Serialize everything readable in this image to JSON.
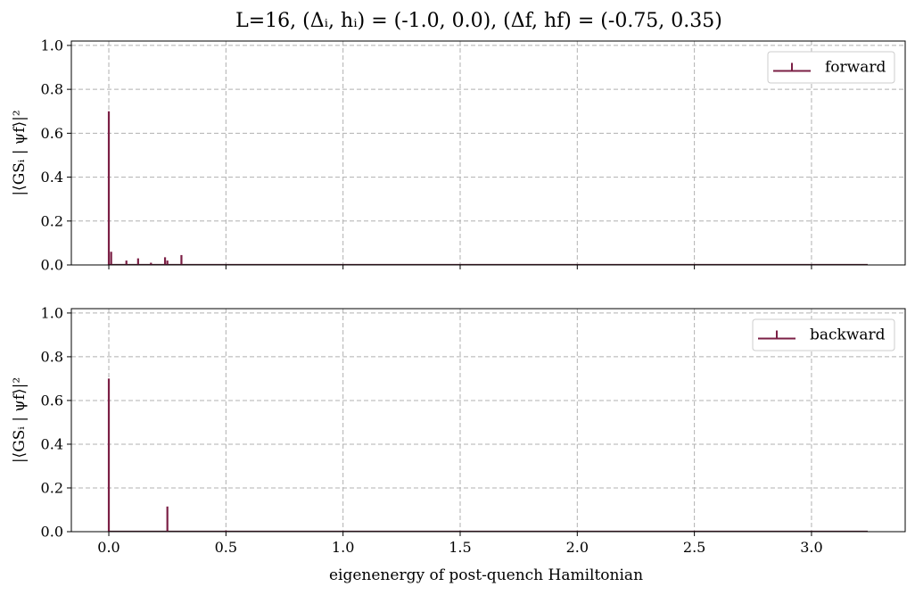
{
  "figure": {
    "title": "L=16,     (Δᵢ, hᵢ) = (-1.0, 0.0),    (Δf, hf) = (-0.75, 0.35)",
    "xlabel": "eigenenergy of post-quench Hamiltonian"
  },
  "colors": {
    "stem": "#7b1f45",
    "grid": "#b0b0b0",
    "axis": "#000000"
  },
  "chart_data": [
    {
      "type": "bar",
      "subtype": "stem",
      "ylabel": "|⟨GSᵢ | ψf⟩|²",
      "legend": "forward",
      "legend_loc": "upper right",
      "xlim": [
        -0.16,
        3.4
      ],
      "ylim": [
        0.0,
        1.02
      ],
      "xticks": [
        0.0,
        0.5,
        1.0,
        1.5,
        2.0,
        2.5,
        3.0
      ],
      "xticklabels": [
        "0.0",
        "0.5",
        "1.0",
        "1.5",
        "2.0",
        "2.5",
        "3.0"
      ],
      "yticks": [
        0.0,
        0.2,
        0.4,
        0.6,
        0.8,
        1.0
      ],
      "yticklabels": [
        "0.0",
        "0.2",
        "0.4",
        "0.6",
        "0.8",
        "1.0"
      ],
      "show_xticklabels": false,
      "grid": true,
      "baseline_range": [
        0.0,
        3.24
      ],
      "x": [
        0.0,
        0.01,
        0.075,
        0.125,
        0.18,
        0.24,
        0.25,
        0.31
      ],
      "y": [
        0.7,
        0.06,
        0.02,
        0.03,
        0.01,
        0.035,
        0.02,
        0.045
      ]
    },
    {
      "type": "bar",
      "subtype": "stem",
      "ylabel": "|⟨GSᵢ | ψf⟩|²",
      "legend": "backward",
      "legend_loc": "upper right",
      "xlim": [
        -0.16,
        3.4
      ],
      "ylim": [
        0.0,
        1.02
      ],
      "xticks": [
        0.0,
        0.5,
        1.0,
        1.5,
        2.0,
        2.5,
        3.0
      ],
      "xticklabels": [
        "0.0",
        "0.5",
        "1.0",
        "1.5",
        "2.0",
        "2.5",
        "3.0"
      ],
      "yticks": [
        0.0,
        0.2,
        0.4,
        0.6,
        0.8,
        1.0
      ],
      "yticklabels": [
        "0.0",
        "0.2",
        "0.4",
        "0.6",
        "0.8",
        "1.0"
      ],
      "show_xticklabels": true,
      "grid": true,
      "baseline_range": [
        0.0,
        3.24
      ],
      "x": [
        0.0,
        0.25,
        0.5
      ],
      "y": [
        0.7,
        0.115,
        0.005
      ]
    }
  ]
}
